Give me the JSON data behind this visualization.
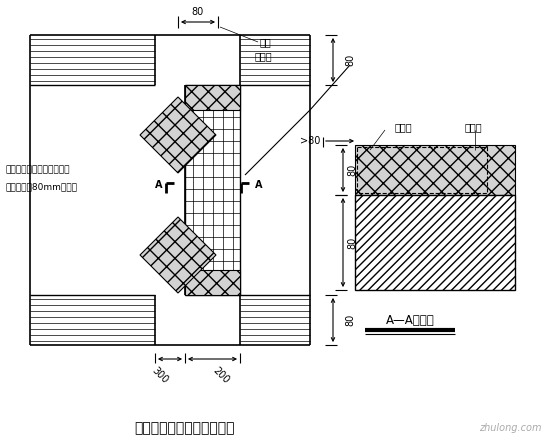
{
  "title": "门窗洞口附加网络布示意图",
  "bg_color": "#ffffff",
  "line_color": "#000000",
  "fig_width": 5.6,
  "fig_height": 4.41,
  "dpi": 100,
  "annotations": {
    "label_fujia": "附加",
    "label_wanggebu": "网格布",
    "label_wanggebu2": "网格布",
    "label_jisueban": "挤塑板",
    "label_AA": "A—A剖面图",
    "label_left1": "与墙体接触一面用粘结砂浆",
    "label_left2": "预粘不小于80mm网格布",
    "label_A1": "A",
    "label_A2": "A",
    "label_80_top": "80",
    "label_80_r1": "80",
    "label_80_r2": "80",
    "label_gt80": ">80",
    "label_300": "300",
    "label_200": "200",
    "watermark": "zhulong.com"
  }
}
